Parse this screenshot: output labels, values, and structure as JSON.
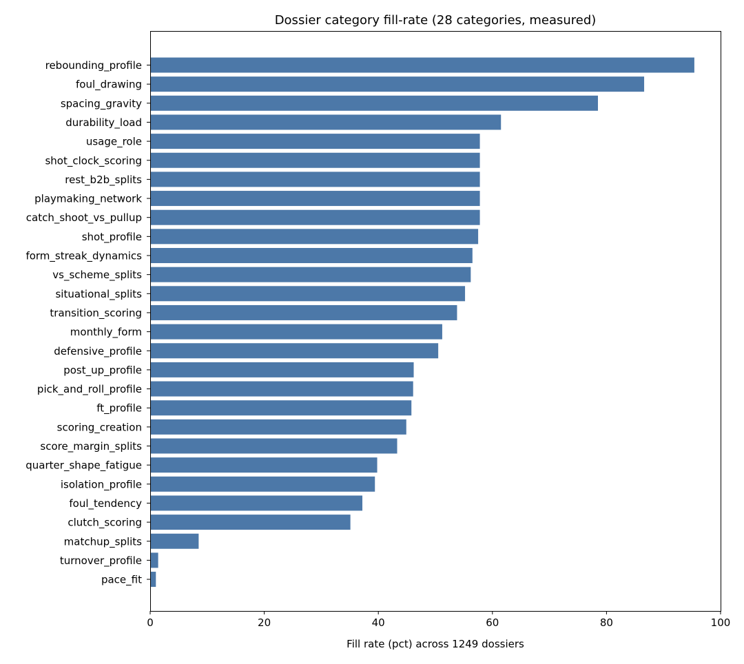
{
  "chart_data": {
    "type": "bar",
    "orientation": "horizontal",
    "title": "Dossier category fill-rate (28 categories, measured)",
    "xlabel": "Fill rate (pct) across 1249 dossiers",
    "ylabel": "",
    "xlim": [
      0,
      100
    ],
    "xticks": [
      "0",
      "20",
      "40",
      "60",
      "80",
      "100"
    ],
    "grid": false,
    "legend": "none",
    "bar_color": "#4c78a8",
    "categories": [
      "rebounding_profile",
      "foul_drawing",
      "spacing_gravity",
      "durability_load",
      "usage_role",
      "shot_clock_scoring",
      "rest_b2b_splits",
      "playmaking_network",
      "catch_shoot_vs_pullup",
      "shot_profile",
      "form_streak_dynamics",
      "vs_scheme_splits",
      "situational_splits",
      "transition_scoring",
      "monthly_form",
      "defensive_profile",
      "post_up_profile",
      "pick_and_roll_profile",
      "ft_profile",
      "scoring_creation",
      "score_margin_splits",
      "quarter_shape_fatigue",
      "isolation_profile",
      "foul_tendency",
      "clutch_scoring",
      "matchup_splits",
      "turnover_profile",
      "pace_fit"
    ],
    "values": [
      95.4,
      86.6,
      78.5,
      61.5,
      57.8,
      57.8,
      57.8,
      57.8,
      57.8,
      57.5,
      56.5,
      56.2,
      55.2,
      53.8,
      51.2,
      50.5,
      46.2,
      46.1,
      45.8,
      44.9,
      43.3,
      39.8,
      39.4,
      37.2,
      35.1,
      8.5,
      1.4,
      1.0
    ]
  }
}
